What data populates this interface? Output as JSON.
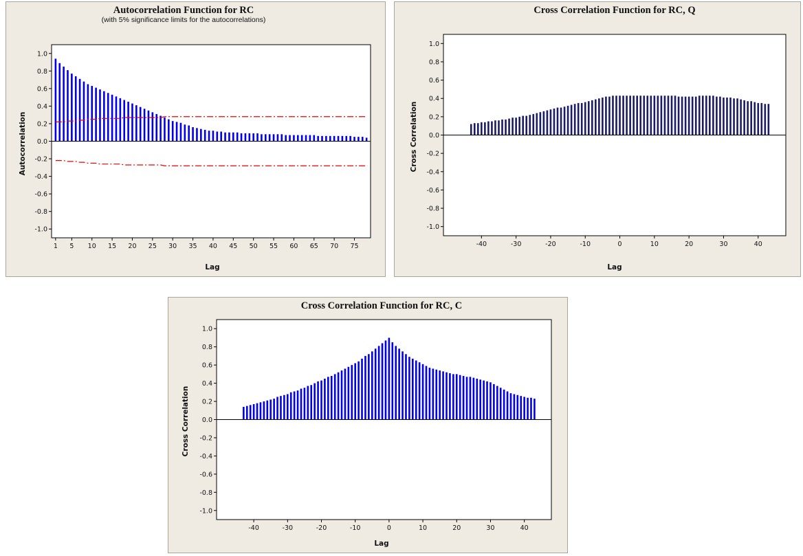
{
  "chart_data": [
    {
      "type": "bar",
      "title": "Autocorrelation Function for RC",
      "subtitle": "(with 5% significance limits for the autocorrelations)",
      "xlabel": "Lag",
      "ylabel": "Autocorrelation",
      "x_ticks": [
        "1",
        "5",
        "10",
        "15",
        "20",
        "25",
        "30",
        "35",
        "40",
        "45",
        "50",
        "55",
        "60",
        "65",
        "70",
        "75"
      ],
      "y_ticks": [
        "1.0",
        "0.8",
        "0.6",
        "0.4",
        "0.2",
        "0.0",
        "-0.2",
        "-0.4",
        "-0.6",
        "-0.8",
        "-1.0"
      ],
      "ylim": [
        -1.1,
        1.1
      ],
      "xlim": [
        0,
        79
      ],
      "bar_color": "#0000ee",
      "limit_color": "#ee0000",
      "grid": false,
      "lags": {
        "start": 1,
        "end": 78
      },
      "values": [
        0.94,
        0.89,
        0.85,
        0.81,
        0.77,
        0.74,
        0.71,
        0.68,
        0.65,
        0.63,
        0.61,
        0.59,
        0.57,
        0.55,
        0.53,
        0.51,
        0.49,
        0.47,
        0.45,
        0.43,
        0.41,
        0.39,
        0.37,
        0.35,
        0.33,
        0.31,
        0.29,
        0.27,
        0.25,
        0.23,
        0.22,
        0.21,
        0.19,
        0.18,
        0.16,
        0.15,
        0.14,
        0.13,
        0.12,
        0.12,
        0.11,
        0.11,
        0.1,
        0.1,
        0.1,
        0.1,
        0.09,
        0.09,
        0.09,
        0.09,
        0.09,
        0.08,
        0.08,
        0.08,
        0.08,
        0.08,
        0.08,
        0.07,
        0.07,
        0.07,
        0.07,
        0.07,
        0.07,
        0.07,
        0.07,
        0.06,
        0.06,
        0.06,
        0.06,
        0.06,
        0.06,
        0.06,
        0.06,
        0.06,
        0.05,
        0.05,
        0.05,
        0.04
      ],
      "significance_limit": [
        0.22,
        0.22,
        0.22,
        0.23,
        0.23,
        0.23,
        0.24,
        0.24,
        0.25,
        0.25,
        0.25,
        0.26,
        0.26,
        0.26,
        0.26,
        0.26,
        0.26,
        0.27,
        0.27,
        0.27,
        0.27,
        0.27,
        0.27,
        0.27,
        0.27,
        0.27,
        0.27,
        0.28,
        0.28,
        0.28,
        0.28,
        0.28,
        0.28,
        0.28,
        0.28,
        0.28,
        0.28,
        0.28,
        0.28,
        0.28,
        0.28,
        0.28,
        0.28,
        0.28,
        0.28,
        0.28,
        0.28,
        0.28,
        0.28,
        0.28,
        0.28,
        0.28,
        0.28,
        0.28,
        0.28,
        0.28,
        0.28,
        0.28,
        0.28,
        0.28,
        0.28,
        0.28,
        0.28,
        0.28,
        0.28,
        0.28,
        0.28,
        0.28,
        0.28,
        0.28,
        0.28,
        0.28,
        0.28,
        0.28,
        0.28,
        0.28,
        0.28,
        0.28
      ]
    },
    {
      "type": "bar",
      "title": "Cross Correlation Function for RC, Q",
      "xlabel": "Lag",
      "ylabel": "Cross Correlation",
      "x_ticks": [
        "-40",
        "-30",
        "-20",
        "-10",
        "0",
        "10",
        "20",
        "30",
        "40"
      ],
      "y_ticks": [
        "1.0",
        "0.8",
        "0.6",
        "0.4",
        "0.2",
        "0.0",
        "-0.2",
        "-0.4",
        "-0.6",
        "-0.8",
        "-1.0"
      ],
      "ylim": [
        -1.1,
        1.1
      ],
      "xlim": [
        -51,
        48
      ],
      "bar_color": "#1c1c66",
      "grid": false,
      "lags": {
        "start": -43,
        "end": 43
      },
      "values": [
        0.12,
        0.13,
        0.13,
        0.14,
        0.14,
        0.15,
        0.15,
        0.16,
        0.16,
        0.17,
        0.17,
        0.18,
        0.19,
        0.19,
        0.2,
        0.21,
        0.21,
        0.22,
        0.23,
        0.24,
        0.25,
        0.26,
        0.27,
        0.28,
        0.29,
        0.3,
        0.3,
        0.31,
        0.32,
        0.33,
        0.34,
        0.35,
        0.35,
        0.36,
        0.37,
        0.38,
        0.39,
        0.4,
        0.41,
        0.42,
        0.42,
        0.43,
        0.43,
        0.43,
        0.43,
        0.43,
        0.43,
        0.43,
        0.43,
        0.43,
        0.43,
        0.43,
        0.43,
        0.43,
        0.43,
        0.43,
        0.43,
        0.43,
        0.43,
        0.43,
        0.42,
        0.42,
        0.42,
        0.42,
        0.42,
        0.42,
        0.43,
        0.43,
        0.43,
        0.43,
        0.43,
        0.42,
        0.42,
        0.41,
        0.41,
        0.41,
        0.4,
        0.4,
        0.39,
        0.38,
        0.37,
        0.37,
        0.36,
        0.35,
        0.35,
        0.34,
        0.34
      ]
    },
    {
      "type": "bar",
      "title": "Cross Correlation Function for RC, C",
      "xlabel": "Lag",
      "ylabel": "Cross Correlation",
      "x_ticks": [
        "-40",
        "-30",
        "-20",
        "-10",
        "0",
        "10",
        "20",
        "30",
        "40"
      ],
      "y_ticks": [
        "1.0",
        "0.8",
        "0.6",
        "0.4",
        "0.2",
        "0.0",
        "-0.2",
        "-0.4",
        "-0.6",
        "-0.8",
        "-1.0"
      ],
      "ylim": [
        -1.1,
        1.1
      ],
      "xlim": [
        -51,
        48
      ],
      "bar_color": "#0000ee",
      "grid": false,
      "lags": {
        "start": -43,
        "end": 43
      },
      "values": [
        0.14,
        0.15,
        0.16,
        0.17,
        0.18,
        0.19,
        0.2,
        0.21,
        0.22,
        0.23,
        0.25,
        0.26,
        0.27,
        0.28,
        0.3,
        0.31,
        0.32,
        0.34,
        0.35,
        0.37,
        0.38,
        0.4,
        0.42,
        0.43,
        0.45,
        0.47,
        0.48,
        0.5,
        0.52,
        0.54,
        0.56,
        0.58,
        0.6,
        0.62,
        0.64,
        0.67,
        0.7,
        0.72,
        0.75,
        0.78,
        0.81,
        0.84,
        0.87,
        0.9,
        0.85,
        0.81,
        0.78,
        0.75,
        0.72,
        0.69,
        0.67,
        0.65,
        0.63,
        0.61,
        0.59,
        0.57,
        0.56,
        0.55,
        0.54,
        0.53,
        0.52,
        0.51,
        0.5,
        0.5,
        0.49,
        0.48,
        0.47,
        0.47,
        0.46,
        0.45,
        0.44,
        0.43,
        0.42,
        0.41,
        0.39,
        0.37,
        0.35,
        0.33,
        0.31,
        0.29,
        0.28,
        0.27,
        0.26,
        0.25,
        0.24,
        0.24,
        0.23
      ]
    }
  ]
}
